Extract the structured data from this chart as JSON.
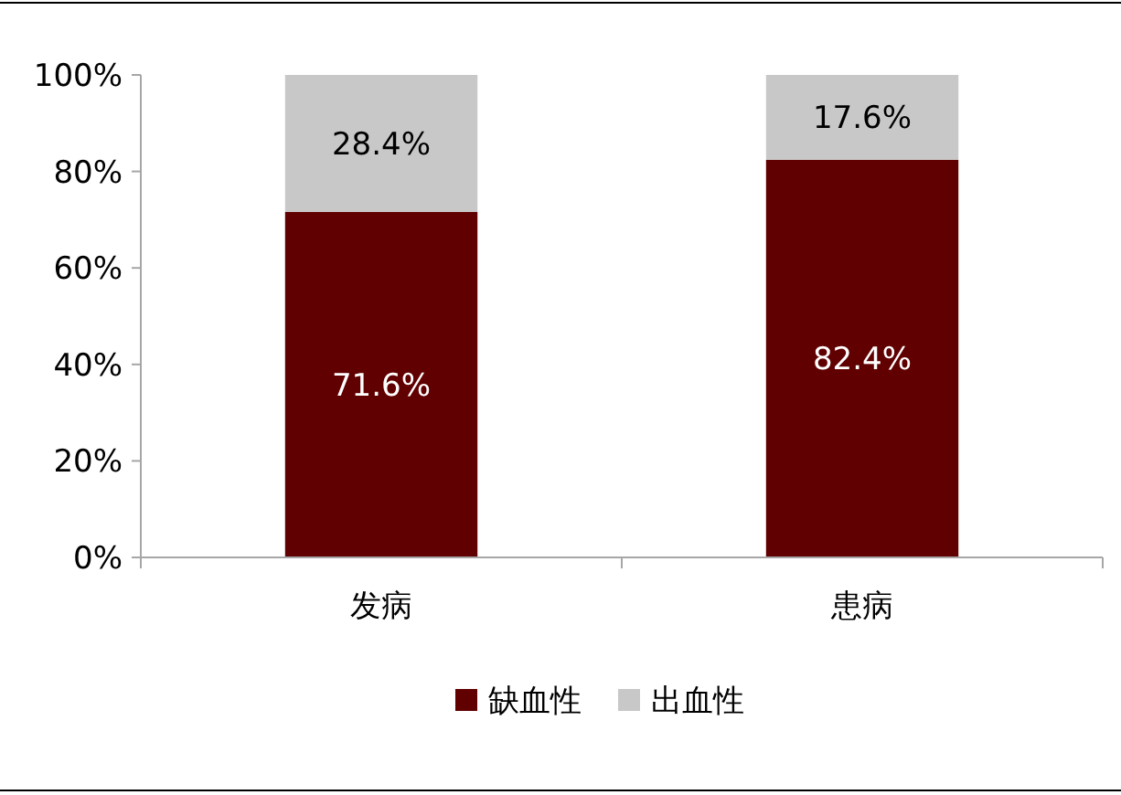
{
  "chart_data": {
    "type": "bar",
    "stacked": true,
    "categories": [
      "发病",
      "患病"
    ],
    "series": [
      {
        "name": "缺血性",
        "color": "#600000",
        "values": [
          71.6,
          82.4
        ],
        "value_labels": [
          "71.6%",
          "82.4%"
        ]
      },
      {
        "name": "出血性",
        "color": "#c8c8c8",
        "values": [
          28.4,
          17.6
        ],
        "value_labels": [
          "28.4%",
          "17.6%"
        ]
      }
    ],
    "ylim": [
      0,
      100
    ],
    "yticks": [
      {
        "value": 0,
        "label": "0%"
      },
      {
        "value": 20,
        "label": "20%"
      },
      {
        "value": 40,
        "label": "40%"
      },
      {
        "value": 60,
        "label": "60%"
      },
      {
        "value": 80,
        "label": "80%"
      },
      {
        "value": 100,
        "label": "100%"
      }
    ],
    "grid": false,
    "legend": "bottom"
  }
}
